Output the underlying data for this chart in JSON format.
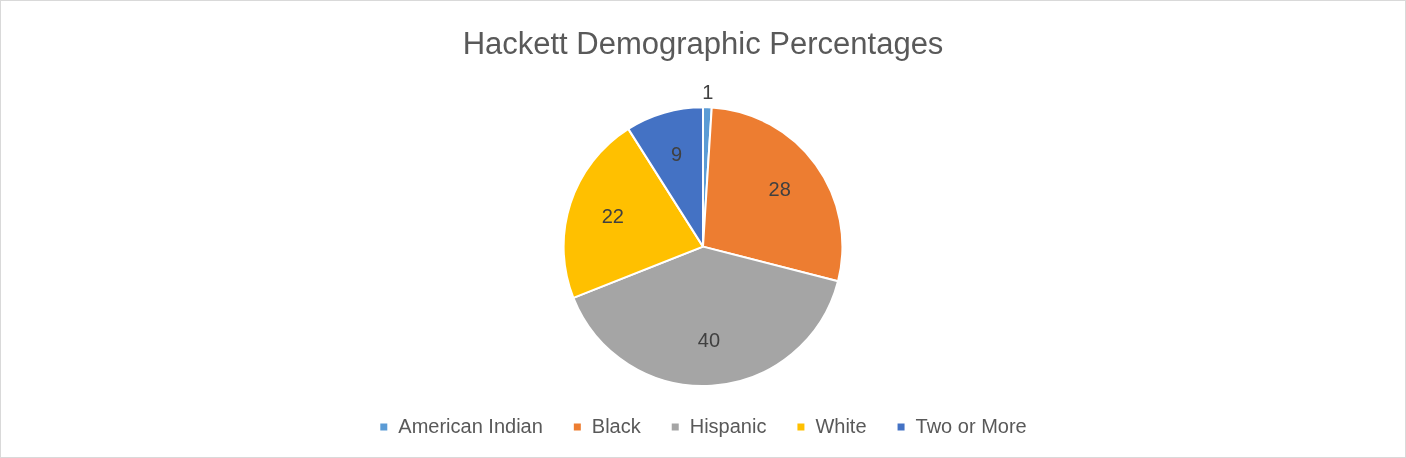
{
  "chart_data": {
    "type": "pie",
    "title": "Hackett Demographic Percentages",
    "categories": [
      "American Indian",
      "Black",
      "Hispanic",
      "White",
      "Two or More"
    ],
    "values": [
      1,
      28,
      40,
      22,
      9
    ],
    "colors": [
      "#5b9bd5",
      "#ed7d31",
      "#a5a5a5",
      "#ffc000",
      "#4472c4"
    ],
    "data_labels": true,
    "legend": "bottom"
  }
}
